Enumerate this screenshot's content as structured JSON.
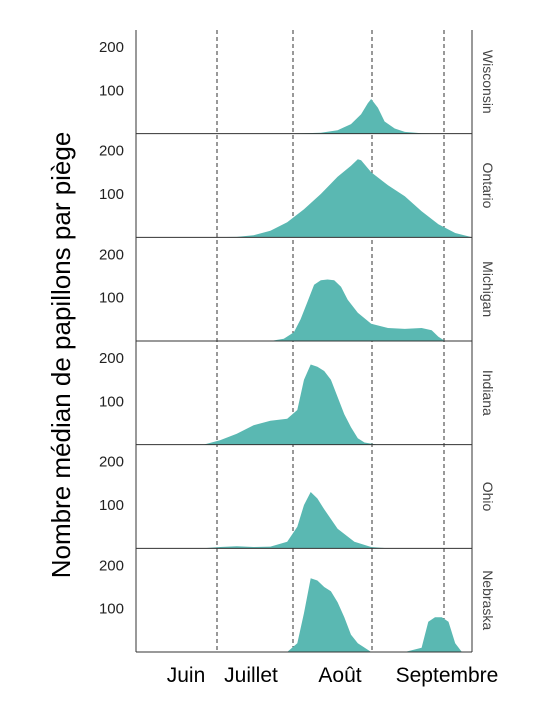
{
  "chart_data": {
    "type": "area",
    "ylabel": "Nombre médian de papillons par piège",
    "xlabel": "",
    "x_ticks": [
      "Juin",
      "Juillet",
      "Août",
      "Septembre"
    ],
    "y_ticks": [
      100,
      200
    ],
    "ylim": [
      0,
      230
    ],
    "xlim": [
      0,
      100
    ],
    "fill_color": "#5ab8b2",
    "grid": false,
    "guides": "dashed vertical lines at month boundaries",
    "series": [
      {
        "name": "Wisconsin",
        "x": [
          45,
          55,
          60,
          64,
          67,
          69,
          70,
          72,
          74,
          77,
          80,
          85,
          92
        ],
        "y": [
          0,
          2,
          8,
          22,
          45,
          70,
          80,
          60,
          28,
          12,
          4,
          1,
          0
        ]
      },
      {
        "name": "Ontario",
        "x": [
          20,
          30,
          35,
          40,
          45,
          50,
          55,
          60,
          64,
          66,
          67,
          70,
          75,
          80,
          85,
          90,
          95,
          100
        ],
        "y": [
          0,
          1,
          5,
          15,
          35,
          65,
          100,
          140,
          165,
          180,
          178,
          150,
          120,
          95,
          60,
          30,
          10,
          0
        ]
      },
      {
        "name": "Michigan",
        "x": [
          40,
          44,
          47,
          49,
          51,
          53,
          55,
          57,
          59,
          61,
          63,
          66,
          70,
          75,
          80,
          85,
          88,
          90,
          92
        ],
        "y": [
          0,
          5,
          20,
          50,
          90,
          130,
          140,
          142,
          140,
          125,
          95,
          65,
          40,
          30,
          28,
          30,
          25,
          10,
          0
        ]
      },
      {
        "name": "Indiana",
        "x": [
          20,
          25,
          30,
          35,
          40,
          45,
          48,
          50,
          52,
          54,
          56,
          58,
          60,
          62,
          64,
          66,
          68,
          72
        ],
        "y": [
          0,
          10,
          25,
          45,
          55,
          60,
          80,
          150,
          185,
          180,
          170,
          150,
          110,
          70,
          40,
          15,
          5,
          0
        ]
      },
      {
        "name": "Ohio",
        "x": [
          20,
          25,
          30,
          35,
          40,
          45,
          48,
          50,
          52,
          54,
          56,
          60,
          65,
          70,
          75
        ],
        "y": [
          0,
          3,
          5,
          3,
          4,
          15,
          50,
          100,
          130,
          115,
          90,
          45,
          15,
          3,
          0
        ]
      },
      {
        "name": "Nebraska",
        "x": [
          45,
          48,
          50,
          52,
          54,
          56,
          58,
          60,
          62,
          64,
          66,
          70,
          80,
          85,
          87,
          89,
          91,
          93,
          95,
          97
        ],
        "y": [
          0,
          20,
          90,
          170,
          165,
          150,
          140,
          115,
          80,
          40,
          20,
          0,
          0,
          10,
          70,
          80,
          80,
          70,
          20,
          0
        ]
      }
    ]
  }
}
